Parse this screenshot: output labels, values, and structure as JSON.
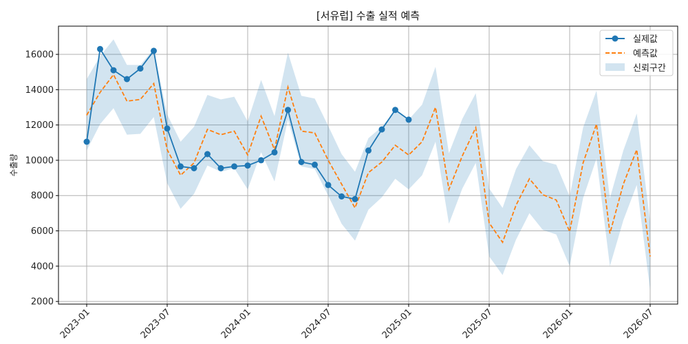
{
  "chart_data": {
    "type": "line",
    "title": "[서유럽] 수출 실적 예측",
    "xlabel": "",
    "ylabel": "수출량",
    "ylim": [
      1850,
      17600
    ],
    "yticks": [
      2000,
      4000,
      6000,
      8000,
      10000,
      12000,
      14000,
      16000
    ],
    "ytick_labels": [
      "2000",
      "4000",
      "6000",
      "8000",
      "10000",
      "12000",
      "14000",
      "16000"
    ],
    "xtick_labels": [
      "2023-01",
      "2023-07",
      "2024-01",
      "2024-07",
      "2025-01",
      "2025-07",
      "2026-01",
      "2026-07"
    ],
    "xtick_indices": [
      0,
      6,
      12,
      18,
      24,
      30,
      36,
      42
    ],
    "grid": true,
    "legend_position": "top-right",
    "months": [
      "2023-01",
      "2023-02",
      "2023-03",
      "2023-04",
      "2023-05",
      "2023-06",
      "2023-07",
      "2023-08",
      "2023-09",
      "2023-10",
      "2023-11",
      "2023-12",
      "2024-01",
      "2024-02",
      "2024-03",
      "2024-04",
      "2024-05",
      "2024-06",
      "2024-07",
      "2024-08",
      "2024-09",
      "2024-10",
      "2024-11",
      "2024-12",
      "2025-01",
      "2025-02",
      "2025-03",
      "2025-04",
      "2025-05",
      "2025-06",
      "2025-07",
      "2025-08",
      "2025-09",
      "2025-10",
      "2025-11",
      "2025-12",
      "2026-01",
      "2026-02",
      "2026-03",
      "2026-04",
      "2026-05",
      "2026-06",
      "2026-07"
    ],
    "series": [
      {
        "name": "실제값",
        "style": "solid-marker",
        "color": "#1f77b4",
        "values": [
          11050,
          16300,
          15100,
          14600,
          15200,
          16200,
          11800,
          9650,
          9550,
          10350,
          9550,
          9650,
          9700,
          10000,
          10450,
          12850,
          9900,
          9750,
          8600,
          7950,
          7800,
          10550,
          11750,
          12850,
          12300
        ]
      },
      {
        "name": "예측값",
        "style": "dashed",
        "color": "#ff7f0e",
        "values": [
          12550,
          13850,
          14850,
          13350,
          13450,
          14350,
          10600,
          9150,
          9850,
          11750,
          11450,
          11650,
          10300,
          12500,
          10600,
          14150,
          11650,
          11550,
          10000,
          8650,
          7300,
          9300,
          9900,
          10850,
          10300,
          11050,
          13000,
          8350,
          10250,
          11850,
          6450,
          5350,
          7450,
          8950,
          8050,
          7750,
          5950,
          9850,
          12050,
          5850,
          8650,
          10600,
          4550
        ]
      }
    ],
    "confidence_band": {
      "name": "신뢰구간",
      "color": "#1f77b4",
      "lower": [
        10550,
        12050,
        12950,
        11450,
        11500,
        12450,
        8700,
        7250,
        8100,
        9700,
        9350,
        9550,
        8350,
        10450,
        8800,
        12300,
        9650,
        9500,
        8000,
        6400,
        5450,
        7200,
        7900,
        8950,
        8350,
        9150,
        11050,
        6400,
        8400,
        9850,
        4550,
        3500,
        5500,
        7000,
        6050,
        5800,
        4000,
        7850,
        10100,
        4000,
        6600,
        8600,
        2650
      ],
      "upper": [
        14600,
        15900,
        16850,
        15400,
        15400,
        16300,
        12600,
        11050,
        11900,
        13700,
        13450,
        13600,
        12200,
        14550,
        12500,
        16100,
        13650,
        13500,
        11950,
        10350,
        9350,
        11250,
        11900,
        12800,
        12300,
        13150,
        15300,
        10400,
        12350,
        13800,
        8400,
        7300,
        9500,
        10850,
        9950,
        9750,
        7950,
        11850,
        13950,
        7850,
        10550,
        12650,
        6500
      ]
    }
  }
}
